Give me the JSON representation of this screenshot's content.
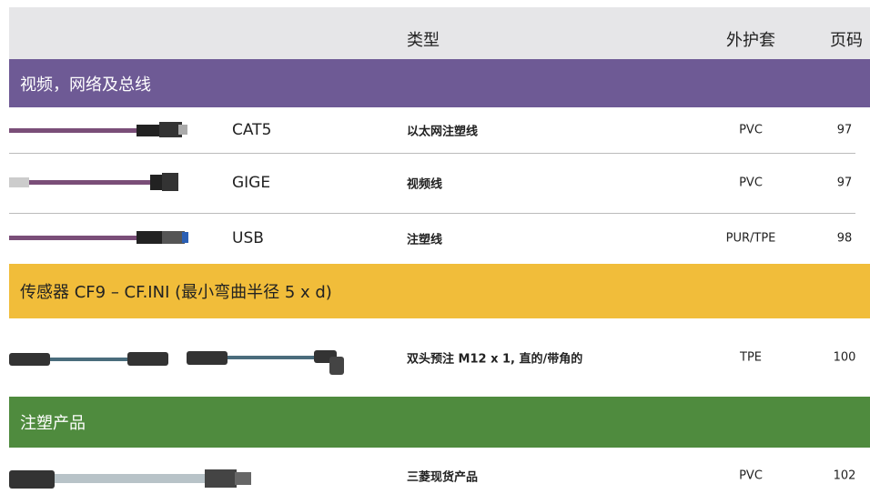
{
  "header": {
    "type_col": "类型",
    "jacket_col": "外护套",
    "page_col": "页码"
  },
  "sections": [
    {
      "title": "视频，网络及总线",
      "rows": [
        {
          "name": "CAT5",
          "type": "以太网注塑线",
          "jacket": "PVC",
          "page": 97
        },
        {
          "name": "GIGE",
          "type": "视频线",
          "jacket": "PVC",
          "page": 97
        },
        {
          "name": "USB",
          "type": "注塑线",
          "jacket": "PUR/TPE",
          "page": 98
        }
      ]
    },
    {
      "title": "传感器 CF9 – CF.INI (最小弯曲半径 5 x d)",
      "rows": [
        {
          "type": "双头预注 M12 x 1, 直的/带角的",
          "jacket": "TPE",
          "page": 100
        }
      ]
    },
    {
      "title": "注塑产品",
      "rows": [
        {
          "type": "三菱现货产品",
          "jacket": "PVC",
          "page": 102
        }
      ]
    }
  ]
}
